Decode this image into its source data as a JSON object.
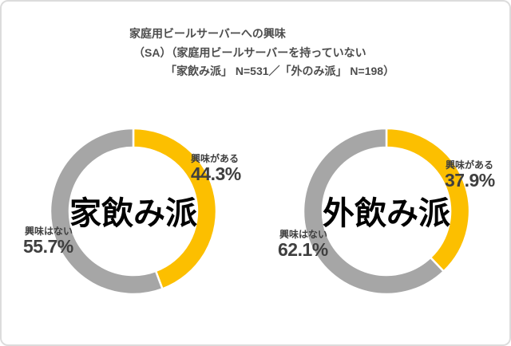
{
  "title": {
    "line1": "家庭用ビールサーバーへの興味",
    "line2": "（SA）（家庭用ビールサーバーを持っていない",
    "line3": "「家飲み派」 N=531／「外のみ派」 N=198）"
  },
  "colors": {
    "interested": "#FCBF00",
    "not_interested": "#A6A6A6",
    "title_text": "#4D4D4D",
    "label_text": "#3F3F3F",
    "center_text": "#000000",
    "card_border": "#DCDCDC"
  },
  "chart_data": [
    {
      "type": "pie",
      "style": "donut",
      "title": "家飲み派",
      "n": "N=531",
      "categories": [
        "興味がある",
        "興味はない"
      ],
      "values": [
        44.3,
        55.7
      ],
      "start_angle_deg": 0,
      "direction": "clockwise",
      "legend_position": "none",
      "slices": [
        {
          "id": "interested",
          "label": "興味がある",
          "value": 44.3,
          "value_text": "44.3%",
          "color": "#FCBF00"
        },
        {
          "id": "not-interested",
          "label": "興味はない",
          "value": 55.7,
          "value_text": "55.7%",
          "color": "#A6A6A6"
        }
      ]
    },
    {
      "type": "pie",
      "style": "donut",
      "title": "外飲み派",
      "n": "N=198",
      "categories": [
        "興味がある",
        "興味はない"
      ],
      "values": [
        37.9,
        62.1
      ],
      "start_angle_deg": 0,
      "direction": "clockwise",
      "legend_position": "none",
      "slices": [
        {
          "id": "interested",
          "label": "興味がある",
          "value": 37.9,
          "value_text": "37.9%",
          "color": "#FCBF00"
        },
        {
          "id": "not-interested",
          "label": "興味はない",
          "value": 62.1,
          "value_text": "62.1%",
          "color": "#A6A6A6"
        }
      ]
    }
  ]
}
